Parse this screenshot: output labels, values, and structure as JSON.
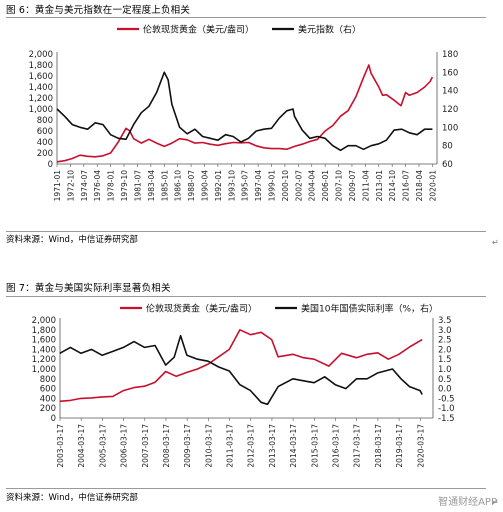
{
  "figures": [
    {
      "caption": "图 6：黄金与美元指数在一定程度上负相关",
      "source": "资料来源：Wind，中信证券研究部",
      "return_mark": "↵"
    },
    {
      "caption": "图 7：黄金与美国实际利率显著负相关",
      "source": "资料来源：Wind，中信证券研究部",
      "return_mark": "↵"
    }
  ],
  "watermark": "智通财经APP",
  "colors": {
    "gold": "#c8102e",
    "black": "#111111"
  },
  "chart_data": [
    {
      "type": "line",
      "title": "",
      "legend_position": "top",
      "x_ticks": [
        "1971-01",
        "1972-10",
        "1974-07",
        "1976-04",
        "1978-01",
        "1979-10",
        "1981-07",
        "1983-04",
        "1985-01",
        "1986-10",
        "1988-07",
        "1990-04",
        "1992-01",
        "1993-10",
        "1995-07",
        "1997-04",
        "1999-01",
        "2000-10",
        "2002-07",
        "2004-04",
        "2006-01",
        "2007-10",
        "2009-07",
        "2011-04",
        "2013-01",
        "2014-10",
        "2016-07",
        "2018-04",
        "2020-01"
      ],
      "y_left": {
        "ticks": [
          "0",
          "200",
          "400",
          "600",
          "800",
          "1,000",
          "1,200",
          "1,400",
          "1,600",
          "1,800",
          "2,000"
        ],
        "range": [
          0,
          2000
        ]
      },
      "y_right": {
        "ticks": [
          "60",
          "80",
          "100",
          "120",
          "140",
          "160",
          "180"
        ],
        "range": [
          60,
          180
        ]
      },
      "series": [
        {
          "name": "伦敦现货黄金（美元/盎司）",
          "axis": "left",
          "color": "#c8102e",
          "x": [
            1971,
            1972,
            1973,
            1974,
            1975,
            1976,
            1977,
            1978,
            1979,
            1980,
            1980.5,
            1981,
            1982,
            1983,
            1984,
            1985,
            1986,
            1987,
            1988,
            1989,
            1990,
            1991,
            1992,
            1993,
            1994,
            1995,
            1996,
            1997,
            1998,
            1999,
            2000,
            2001,
            2002,
            2003,
            2004,
            2005,
            2006,
            2007,
            2008,
            2009,
            2010,
            2011,
            2011.7,
            2012,
            2013,
            2013.5,
            2014,
            2015,
            2015.9,
            2016.5,
            2017,
            2018,
            2019,
            2019.7,
            2020
          ],
          "values": [
            40,
            60,
            100,
            160,
            140,
            130,
            150,
            200,
            400,
            650,
            600,
            460,
            380,
            450,
            380,
            320,
            380,
            460,
            440,
            380,
            390,
            360,
            340,
            370,
            390,
            385,
            390,
            330,
            295,
            280,
            280,
            270,
            320,
            360,
            410,
            450,
            600,
            700,
            870,
            970,
            1220,
            1570,
            1800,
            1650,
            1400,
            1250,
            1260,
            1160,
            1060,
            1300,
            1250,
            1300,
            1400,
            1500,
            1580
          ]
        },
        {
          "name": "美元指数（右）",
          "axis": "right",
          "color": "#111111",
          "x": [
            1971,
            1972,
            1973,
            1974,
            1975,
            1976,
            1977,
            1978,
            1979,
            1980,
            1981,
            1982,
            1983,
            1984,
            1985,
            1985.5,
            1986,
            1987,
            1988,
            1989,
            1990,
            1991,
            1992,
            1993,
            1994,
            1995,
            1996,
            1997,
            1998,
            1999,
            2000,
            2001,
            2001.8,
            2002,
            2003,
            2004,
            2005,
            2006,
            2007,
            2008,
            2009,
            2010,
            2011,
            2012,
            2013,
            2014,
            2015,
            2016,
            2017,
            2018,
            2019,
            2020
          ],
          "values": [
            120,
            112,
            103,
            100,
            98,
            105,
            103,
            92,
            88,
            87,
            103,
            116,
            123,
            138,
            160,
            152,
            125,
            100,
            93,
            98,
            90,
            88,
            86,
            92,
            90,
            84,
            88,
            96,
            98,
            99,
            110,
            118,
            120,
            112,
            97,
            88,
            90,
            88,
            80,
            75,
            80,
            80,
            76,
            80,
            82,
            86,
            97,
            98,
            94,
            92,
            98,
            98
          ]
        }
      ]
    },
    {
      "type": "line",
      "title": "",
      "legend_position": "top",
      "x_ticks": [
        "2003-03-17",
        "2004-03-17",
        "2005-03-17",
        "2006-03-17",
        "2007-03-17",
        "2008-03-17",
        "2009-03-17",
        "2010-03-17",
        "2011-03-17",
        "2012-03-17",
        "2013-03-17",
        "2014-03-17",
        "2015-03-17",
        "2016-03-17",
        "2017-03-17",
        "2018-03-17",
        "2019-03-17",
        "2020-03-17"
      ],
      "y_left": {
        "ticks": [
          "0",
          "200",
          "400",
          "600",
          "800",
          "1,000",
          "1,200",
          "1,400",
          "1,600",
          "1,800",
          "2,000"
        ],
        "range": [
          0,
          2000
        ]
      },
      "y_right": {
        "ticks": [
          "-1.5",
          "-1.0",
          "-0.5",
          "0.0",
          "0.5",
          "1.0",
          "1.5",
          "2.0",
          "2.5",
          "3.0",
          "3.5"
        ],
        "range": [
          -1.5,
          3.5
        ]
      },
      "series": [
        {
          "name": "伦敦现货黄金（美元/盎司）",
          "axis": "left",
          "color": "#c8102e",
          "x": [
            2003.2,
            2003.7,
            2004.2,
            2004.7,
            2005.2,
            2005.7,
            2006.2,
            2006.7,
            2007.2,
            2007.7,
            2008.2,
            2008.7,
            2009.2,
            2009.7,
            2010.2,
            2010.7,
            2011.2,
            2011.7,
            2012.2,
            2012.7,
            2013.2,
            2013.5,
            2014.2,
            2014.7,
            2015.2,
            2015.9,
            2016.5,
            2017.2,
            2017.7,
            2018.2,
            2018.7,
            2019.2,
            2019.7,
            2020.3
          ],
          "values": [
            340,
            360,
            400,
            410,
            430,
            440,
            560,
            620,
            650,
            730,
            950,
            850,
            930,
            1000,
            1100,
            1250,
            1400,
            1800,
            1700,
            1750,
            1600,
            1250,
            1300,
            1230,
            1200,
            1060,
            1320,
            1230,
            1300,
            1330,
            1200,
            1300,
            1450,
            1600
          ]
        },
        {
          "name": "美国10年国债实际利率（%，右）",
          "axis": "right",
          "color": "#111111",
          "x": [
            2003.2,
            2003.7,
            2004.2,
            2004.7,
            2005.2,
            2005.7,
            2006.2,
            2006.7,
            2007.2,
            2007.7,
            2008.2,
            2008.6,
            2008.9,
            2009.2,
            2009.7,
            2010.2,
            2010.7,
            2011.2,
            2011.7,
            2012.2,
            2012.7,
            2013.0,
            2013.5,
            2014.2,
            2014.7,
            2015.2,
            2015.7,
            2016.2,
            2016.7,
            2017.2,
            2017.7,
            2018.2,
            2018.9,
            2019.3,
            2019.7,
            2020.2,
            2020.3
          ],
          "values": [
            1.8,
            2.1,
            1.8,
            2.0,
            1.7,
            1.9,
            2.1,
            2.4,
            2.1,
            2.2,
            1.2,
            1.6,
            2.7,
            1.7,
            1.5,
            1.4,
            1.1,
            0.9,
            0.2,
            -0.1,
            -0.7,
            -0.8,
            0.1,
            0.5,
            0.4,
            0.3,
            0.6,
            0.2,
            0.0,
            0.5,
            0.5,
            0.8,
            1.0,
            0.5,
            0.1,
            -0.1,
            -0.3
          ]
        }
      ]
    }
  ]
}
